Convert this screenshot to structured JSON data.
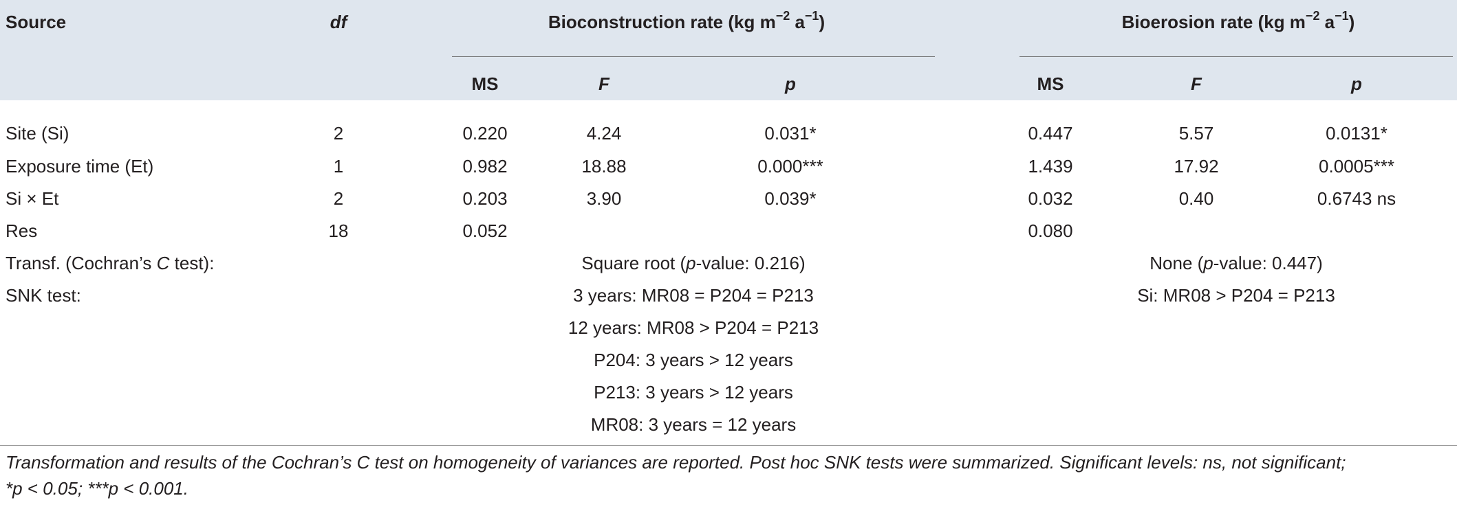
{
  "header": {
    "source": "Source",
    "df": "df",
    "biocon_group": "Bioconstruction rate (kg m",
    "bioero_group": "Bioerosion rate (kg m",
    "unit_exp1": "−2",
    "unit_mid": " a",
    "unit_exp2": "−1",
    "unit_close": ")",
    "ms": "MS",
    "f": "F",
    "p": "p"
  },
  "rows": [
    {
      "source": "Site (Si)",
      "df": "2",
      "b_ms": "0.220",
      "b_f": "4.24",
      "b_p": "0.031*",
      "e_ms": "0.447",
      "e_f": "5.57",
      "e_p": "0.0131*"
    },
    {
      "source": "Exposure time (Et)",
      "df": "1",
      "b_ms": "0.982",
      "b_f": "18.88",
      "b_p": "0.000***",
      "e_ms": "1.439",
      "e_f": "17.92",
      "e_p": "0.0005***"
    },
    {
      "source": "Si × Et",
      "df": "2",
      "b_ms": "0.203",
      "b_f": "3.90",
      "b_p": "0.039*",
      "e_ms": "0.032",
      "e_f": "0.40",
      "e_p": "0.6743 ns"
    },
    {
      "source": "Res",
      "df": "18",
      "b_ms": "0.052",
      "b_f": "",
      "b_p": "",
      "e_ms": "0.080",
      "e_f": "",
      "e_p": ""
    }
  ],
  "transf": {
    "label_a": "Transf. (Cochran’s ",
    "label_c": "C",
    "label_b": " test):",
    "biocon_a": "Square root (",
    "biocon_p": "p",
    "biocon_b": "-value: 0.216)",
    "bioero_a": "None (",
    "bioero_p": "p",
    "bioero_b": "-value: 0.447)"
  },
  "snk": {
    "label": "SNK test:",
    "biocon": [
      "3 years: MR08 = P204 = P213",
      "12 years: MR08 > P204 = P213",
      "P204: 3 years > 12 years",
      "P213: 3 years > 12 years",
      "MR08: 3 years = 12 years"
    ],
    "bioero": [
      "Si: MR08 > P204 = P213"
    ]
  },
  "footnote": {
    "line1": "Transformation and results of the Cochran’s C test on homogeneity of variances are reported. Post hoc SNK tests were summarized. Significant levels: ns, not significant;",
    "line2": "*p < 0.05; ***p < 0.001."
  }
}
